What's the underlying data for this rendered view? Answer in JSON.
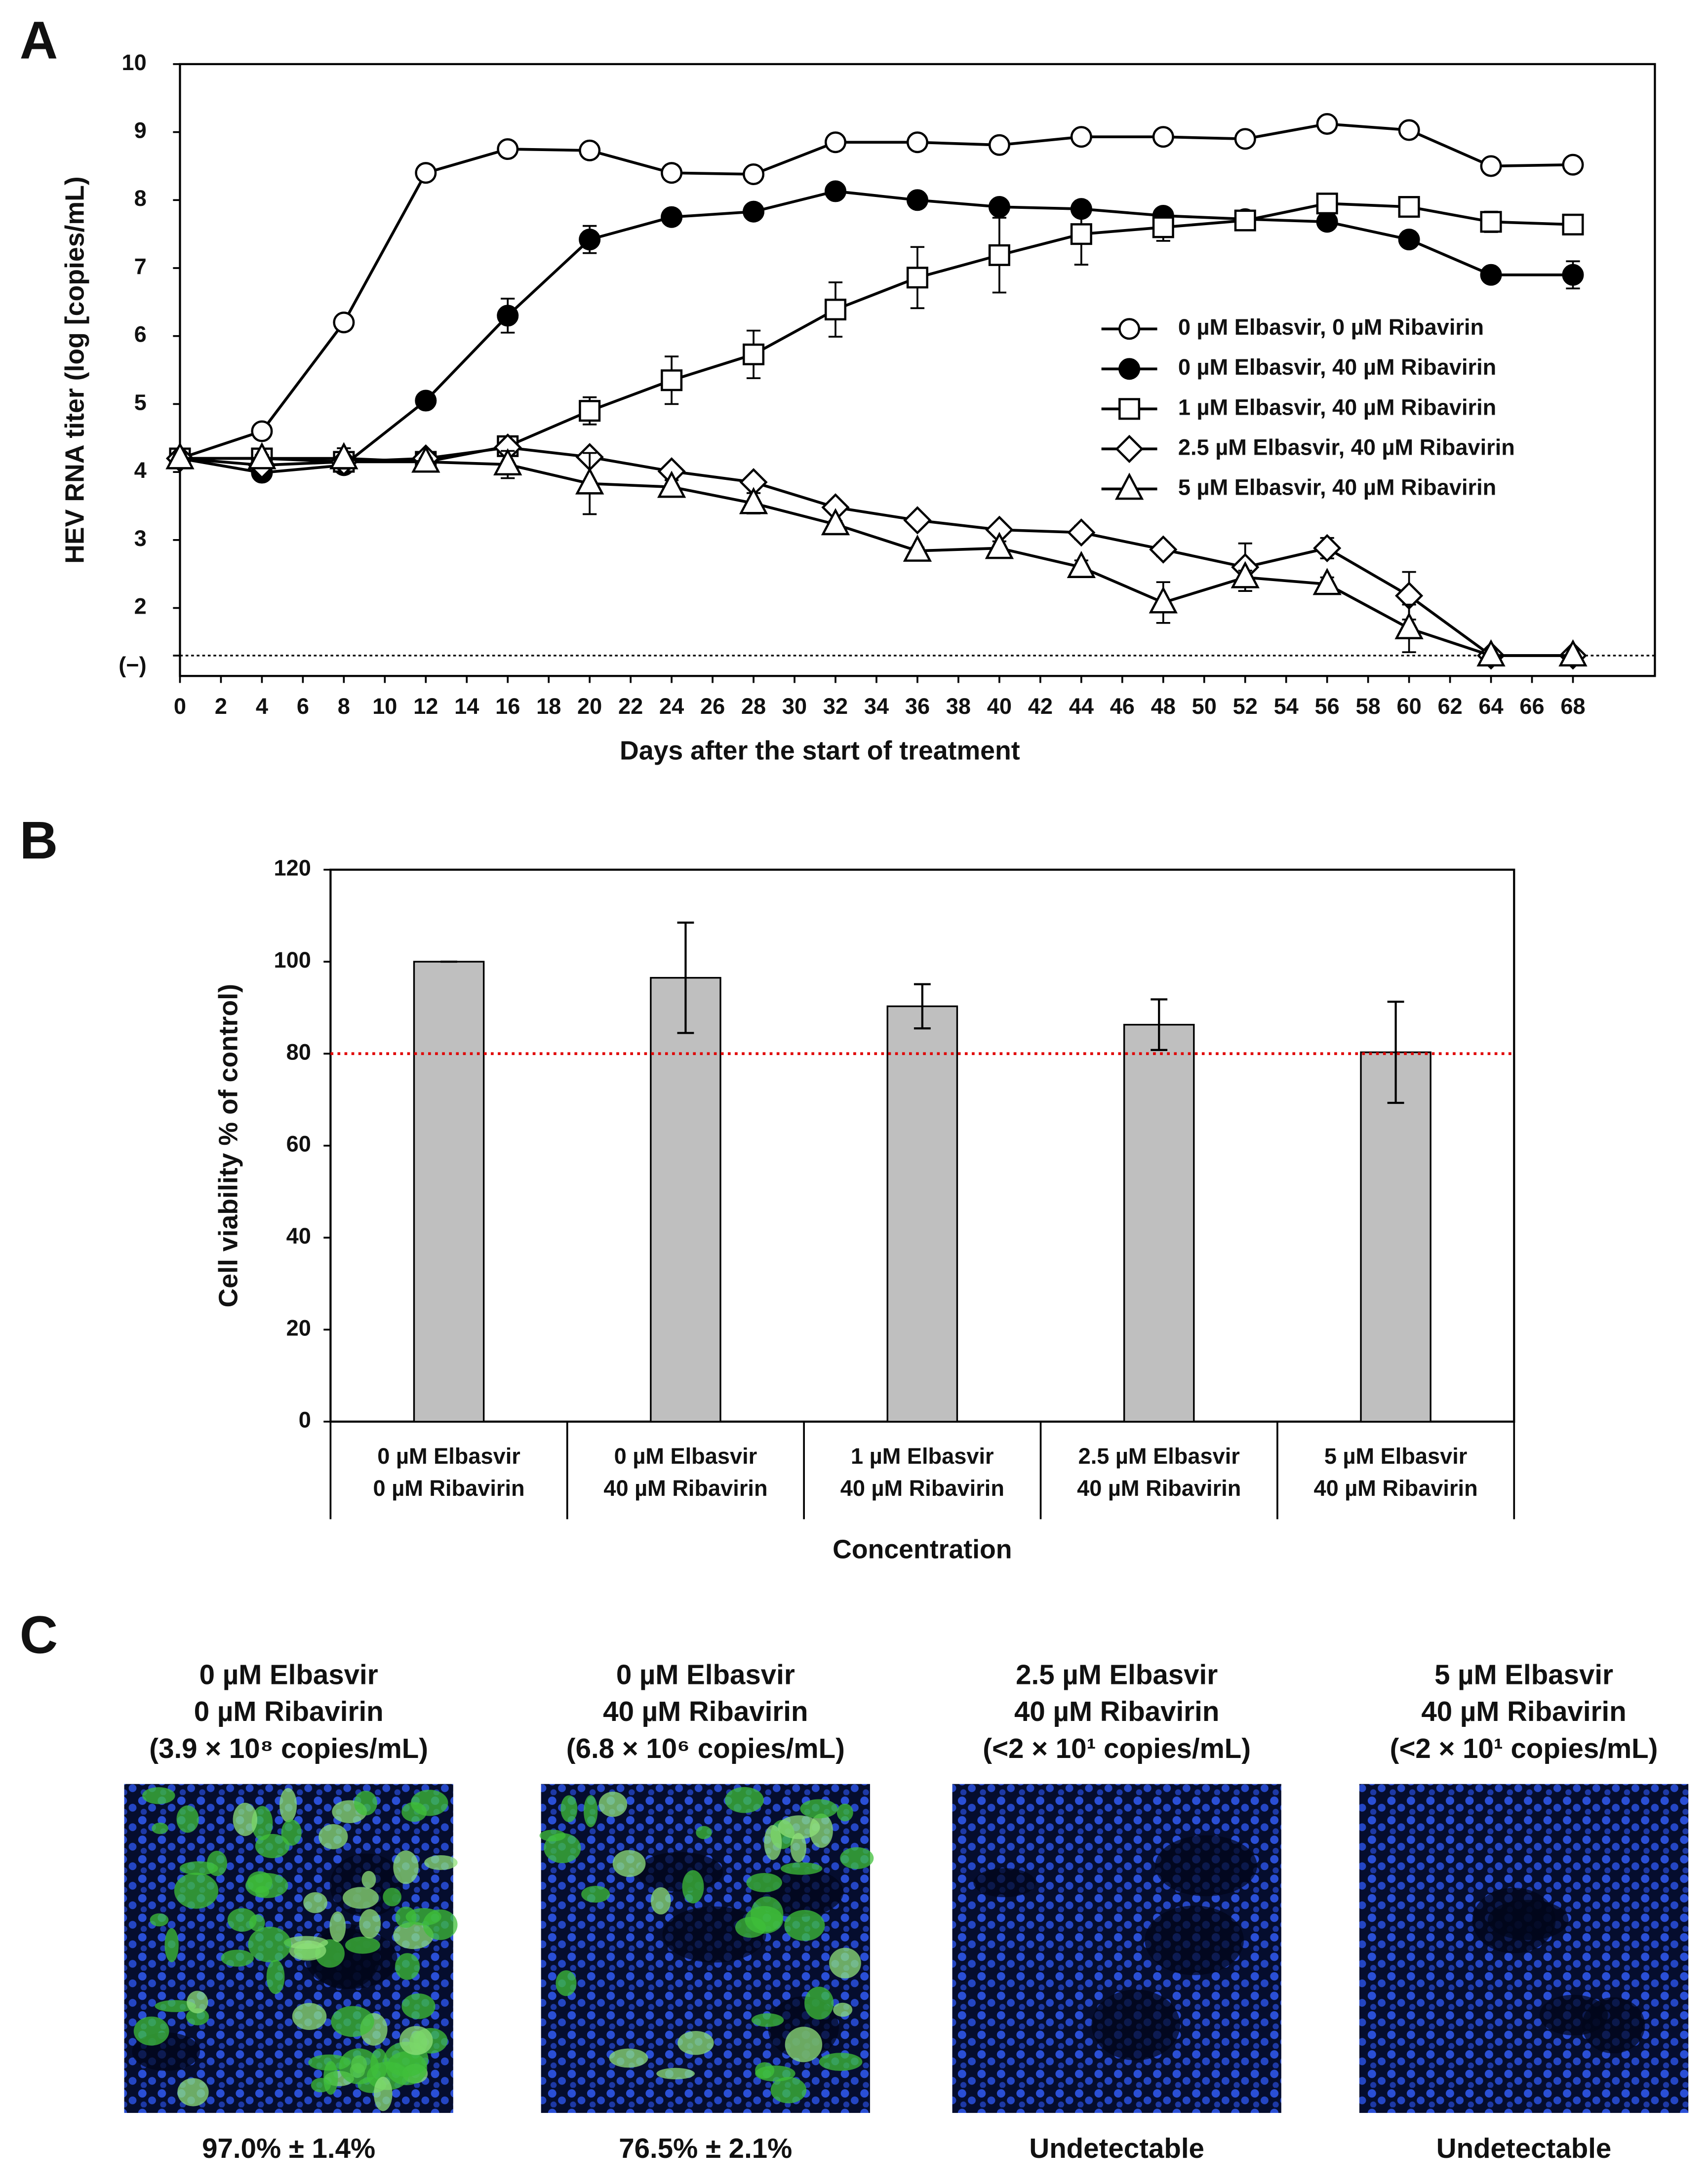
{
  "chart_data": [
    {
      "type": "line",
      "panel_label": "A",
      "xlabel": "Days after the start of treatment",
      "ylabel": "HEV RNA titer (log [copies/mL)",
      "x": [
        0,
        4,
        8,
        12,
        16,
        20,
        24,
        28,
        32,
        36,
        40,
        44,
        48,
        52,
        56,
        60,
        64,
        68
      ],
      "xlim": [
        0,
        72
      ],
      "xticks": [
        0,
        2,
        4,
        6,
        8,
        10,
        12,
        14,
        16,
        18,
        20,
        22,
        24,
        26,
        28,
        30,
        32,
        34,
        36,
        38,
        40,
        42,
        44,
        46,
        48,
        50,
        52,
        54,
        56,
        58,
        60,
        62,
        64,
        66,
        68
      ],
      "ylim": [
        1,
        10
      ],
      "yticks": [
        {
          "value": 1.3,
          "label": "(−)"
        },
        2,
        3,
        4,
        5,
        6,
        7,
        8,
        9,
        10
      ],
      "reference_line": 1.3,
      "legend": "right",
      "series": [
        {
          "name": "0 µM Elbasvir, 0 µM Ribavirin",
          "color": "#000000",
          "marker": "circle",
          "marker_fill": "#ffffff",
          "values": [
            4.2,
            4.6,
            6.2,
            8.4,
            8.75,
            8.73,
            8.4,
            8.38,
            8.85,
            8.85,
            8.81,
            8.93,
            8.93,
            8.9,
            9.12,
            9.03,
            8.5,
            8.52
          ],
          "errors": [
            0.05,
            0.05,
            0.1,
            0.1,
            0.05,
            0.05,
            0.05,
            0.05,
            0.05,
            0.05,
            0.05,
            0.05,
            0.05,
            0.05,
            0.05,
            0.05,
            0.05,
            0.05
          ]
        },
        {
          "name": "0 µM Elbasvir, 40 µM Ribavirin",
          "color": "#000000",
          "marker": "circle",
          "marker_fill": "#000000",
          "values": [
            4.2,
            3.99,
            4.1,
            5.05,
            6.3,
            7.42,
            7.75,
            7.83,
            8.13,
            8.0,
            7.9,
            7.87,
            7.77,
            7.72,
            7.68,
            7.42,
            6.9,
            6.9
          ],
          "errors": [
            0.05,
            0.05,
            0.1,
            0.1,
            0.25,
            0.2,
            0.05,
            0.05,
            0.05,
            0.05,
            0.05,
            0.05,
            0.05,
            0.05,
            0.05,
            0.05,
            0.05,
            0.2
          ]
        },
        {
          "name": "1 µM Elbasvir, 40 µM Ribavirin",
          "color": "#000000",
          "marker": "square",
          "marker_fill": "#ffffff",
          "values": [
            4.2,
            4.2,
            4.15,
            4.15,
            4.38,
            4.9,
            5.35,
            5.73,
            6.39,
            6.86,
            7.19,
            7.5,
            7.6,
            7.7,
            7.95,
            7.9,
            7.68,
            7.64
          ],
          "errors": [
            0.05,
            0.05,
            0.1,
            0.05,
            0.05,
            0.2,
            0.35,
            0.35,
            0.4,
            0.45,
            0.55,
            0.45,
            0.2,
            0.05,
            0.05,
            0.05,
            0.15,
            0.1
          ]
        },
        {
          "name": "2.5 µM Elbasvir, 40 µM Ribavirin",
          "color": "#000000",
          "marker": "diamond",
          "marker_fill": "#ffffff",
          "values": [
            4.2,
            4.1,
            4.15,
            4.2,
            4.36,
            4.22,
            4.01,
            3.85,
            3.48,
            3.29,
            3.15,
            3.11,
            2.86,
            2.6,
            2.88,
            2.18,
            1.3,
            1.3
          ],
          "errors": [
            0.05,
            0.05,
            0.1,
            0.05,
            0.05,
            0.05,
            0.05,
            0.05,
            0.05,
            0.05,
            0.05,
            0.1,
            0.1,
            0.35,
            0.15,
            0.35,
            0.0,
            0.0
          ]
        },
        {
          "name": "5 µM Elbasvir, 40 µM Ribavirin",
          "color": "#000000",
          "marker": "triangle",
          "marker_fill": "#ffffff",
          "values": [
            4.2,
            4.2,
            4.2,
            4.15,
            4.11,
            3.83,
            3.78,
            3.54,
            3.23,
            2.84,
            2.88,
            2.6,
            2.08,
            2.45,
            2.35,
            1.7,
            1.3,
            1.3
          ],
          "errors": [
            0.05,
            0.05,
            0.15,
            0.05,
            0.2,
            0.45,
            0.1,
            0.15,
            0.05,
            0.05,
            0.1,
            0.1,
            0.3,
            0.1,
            0.1,
            0.35,
            0.0,
            0.0
          ]
        }
      ]
    },
    {
      "type": "bar",
      "panel_label": "B",
      "xlabel": "Concentration",
      "ylabel": "Cell viability % of control)",
      "categories": [
        [
          "0 µM Elbasvir",
          "0 µM Ribavirin"
        ],
        [
          "0 µM Elbasvir",
          "40 µM Ribavirin"
        ],
        [
          "1 µM Elbasvir",
          "40 µM Ribavirin"
        ],
        [
          "2.5 µM Elbasvir",
          "40 µM Ribavirin"
        ],
        [
          "5 µM Elbasvir",
          "40 µM Ribavirin"
        ]
      ],
      "values": [
        100,
        96.5,
        90.3,
        86.3,
        80.3
      ],
      "errors": [
        0,
        12,
        4.8,
        5.5,
        11
      ],
      "color": "#bfbfbf",
      "ylim": [
        0,
        120
      ],
      "yticks": [
        0,
        20,
        40,
        60,
        80,
        100,
        120
      ],
      "reference_line": 80,
      "reference_color": "#e00000"
    }
  ],
  "panel_c": {
    "label": "C",
    "images": [
      {
        "title": [
          "0 µM Elbasvir",
          "0 µM Ribavirin",
          "(3.9 × 10⁸ copies/mL)"
        ],
        "caption": "97.0% ± 1.4%"
      },
      {
        "title": [
          "0 µM Elbasvir",
          "40 µM Ribavirin",
          "(6.8 × 10⁶ copies/mL)"
        ],
        "caption": "76.5% ± 2.1%"
      },
      {
        "title": [
          "2.5 µM Elbasvir",
          "40 µM Ribavirin",
          "(<2 × 10¹ copies/mL)"
        ],
        "caption": "Undetectable"
      },
      {
        "title": [
          "5 µM Elbasvir",
          "40 µM Ribavirin",
          "(<2 × 10¹ copies/mL)"
        ],
        "caption": "Undetectable"
      }
    ]
  }
}
